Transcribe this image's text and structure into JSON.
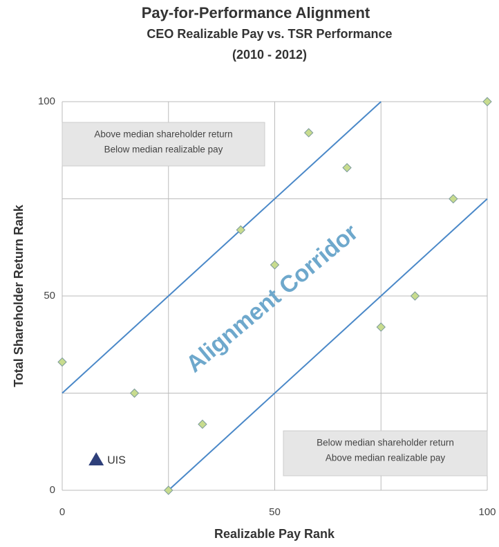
{
  "chart_data": {
    "type": "scatter",
    "title": "Pay-for-Performance Alignment",
    "subtitle": [
      "CEO Realizable Pay vs. TSR Performance",
      "(2010 - 2012)"
    ],
    "x_label": "Realizable Pay Rank",
    "y_label": "Total Shareholder Return Rank",
    "xlim": [
      0,
      100
    ],
    "ylim": [
      0,
      100
    ],
    "xticks": [
      0,
      50,
      100
    ],
    "yticks": [
      0,
      50,
      100
    ],
    "xgrid": [
      0,
      25,
      50,
      75,
      100
    ],
    "ygrid": [
      0,
      25,
      50,
      75,
      100
    ],
    "grid": true,
    "series": [
      {
        "color": "#c8dc8e",
        "marker": "diamond",
        "x": [
          0,
          17,
          33,
          25,
          42,
          50,
          58,
          67,
          75,
          83,
          92,
          100
        ],
        "values": [
          33,
          25,
          17,
          0,
          67,
          58,
          92,
          83,
          42,
          50,
          75,
          100
        ]
      },
      {
        "name": "UIS",
        "color": "#2e3f7a",
        "marker": "triangle",
        "x": [
          8
        ],
        "values": [
          8
        ]
      }
    ],
    "lines": [
      {
        "x": [
          0,
          75
        ],
        "values": [
          25,
          100
        ],
        "color": "#4a88c8"
      },
      {
        "x": [
          25,
          100
        ],
        "values": [
          0,
          75
        ],
        "color": "#4a88c8"
      }
    ],
    "annotations": [
      {
        "text": [
          "Above median shareholder return",
          "Below median realizable pay"
        ]
      },
      {
        "text": [
          "Below median shareholder return",
          "Above median realizable pay"
        ]
      },
      {
        "text": "Alignment Corridor",
        "color": "#6ea8cc"
      }
    ]
  }
}
